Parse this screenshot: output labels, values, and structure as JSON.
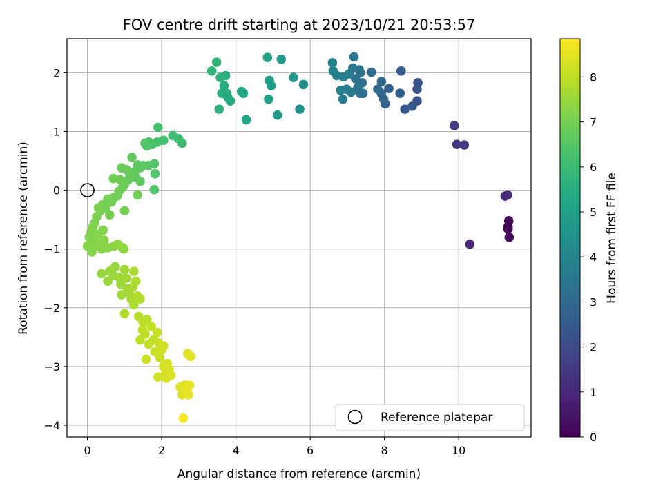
{
  "chart_data": {
    "type": "scatter",
    "title": "FOV centre drift starting at 2023/10/21 20:53:57",
    "xlabel": "Angular distance from reference (arcmin)",
    "ylabel": "Rotation from reference (arcmin)",
    "xlim": [
      -0.55,
      11.95
    ],
    "ylim": [
      -4.2,
      2.58
    ],
    "xticks": [
      0,
      2,
      4,
      6,
      8,
      10
    ],
    "yticks": [
      -4,
      -3,
      -2,
      -1,
      0,
      1,
      2
    ],
    "grid": true,
    "colormap": "viridis",
    "colorbar": {
      "label": "Hours from first FF file",
      "range": [
        0,
        8.85
      ],
      "ticks": [
        0,
        1,
        2,
        3,
        4,
        5,
        6,
        7,
        8
      ]
    },
    "legend": {
      "position": "lower-right",
      "entries": [
        "Reference platepar"
      ]
    },
    "reference_point": {
      "x": 0,
      "y": 0,
      "label": "Reference platepar"
    },
    "points": [
      {
        "x": 11.35,
        "y": -0.52,
        "h": 0.05
      },
      {
        "x": 11.33,
        "y": -0.62,
        "h": 0.1
      },
      {
        "x": 11.33,
        "y": -0.66,
        "h": 0.15
      },
      {
        "x": 11.36,
        "y": -0.8,
        "h": 0.2
      },
      {
        "x": 10.3,
        "y": -0.92,
        "h": 0.9
      },
      {
        "x": 11.25,
        "y": -0.1,
        "h": 1.05
      },
      {
        "x": 11.32,
        "y": -0.08,
        "h": 1.1
      },
      {
        "x": 9.95,
        "y": 0.78,
        "h": 1.4
      },
      {
        "x": 10.15,
        "y": 0.77,
        "h": 1.45
      },
      {
        "x": 9.88,
        "y": 1.1,
        "h": 1.55
      },
      {
        "x": 8.9,
        "y": 1.83,
        "h": 2.2
      },
      {
        "x": 8.88,
        "y": 1.72,
        "h": 2.25
      },
      {
        "x": 8.88,
        "y": 1.52,
        "h": 2.3
      },
      {
        "x": 8.75,
        "y": 1.43,
        "h": 2.4
      },
      {
        "x": 8.55,
        "y": 1.38,
        "h": 2.5
      },
      {
        "x": 8.45,
        "y": 2.03,
        "h": 2.6
      },
      {
        "x": 8.42,
        "y": 1.65,
        "h": 2.65
      },
      {
        "x": 8.12,
        "y": 1.73,
        "h": 2.75
      },
      {
        "x": 8.02,
        "y": 1.47,
        "h": 2.8
      },
      {
        "x": 7.98,
        "y": 1.55,
        "h": 2.85
      },
      {
        "x": 7.92,
        "y": 1.65,
        "h": 2.9
      },
      {
        "x": 7.92,
        "y": 1.85,
        "h": 2.95
      },
      {
        "x": 7.82,
        "y": 1.72,
        "h": 3.0
      },
      {
        "x": 7.65,
        "y": 2.01,
        "h": 3.1
      },
      {
        "x": 7.4,
        "y": 1.83,
        "h": 3.2
      },
      {
        "x": 7.35,
        "y": 1.65,
        "h": 3.25
      },
      {
        "x": 7.32,
        "y": 2.05,
        "h": 3.3
      },
      {
        "x": 7.28,
        "y": 1.75,
        "h": 3.35
      },
      {
        "x": 7.22,
        "y": 1.9,
        "h": 3.4
      },
      {
        "x": 7.18,
        "y": 2.27,
        "h": 3.45
      },
      {
        "x": 7.15,
        "y": 2.08,
        "h": 3.5
      },
      {
        "x": 7.1,
        "y": 1.67,
        "h": 3.55
      },
      {
        "x": 7.05,
        "y": 1.98,
        "h": 3.6
      },
      {
        "x": 6.98,
        "y": 1.72,
        "h": 3.65
      },
      {
        "x": 6.9,
        "y": 1.93,
        "h": 3.7
      },
      {
        "x": 6.88,
        "y": 1.55,
        "h": 3.75
      },
      {
        "x": 6.82,
        "y": 1.7,
        "h": 3.8
      },
      {
        "x": 6.72,
        "y": 1.95,
        "h": 3.85
      },
      {
        "x": 6.62,
        "y": 2.03,
        "h": 3.9
      },
      {
        "x": 6.6,
        "y": 2.17,
        "h": 3.95
      },
      {
        "x": 7.35,
        "y": 2.0,
        "h": 3.4
      },
      {
        "x": 7.42,
        "y": 1.65,
        "h": 3.2
      },
      {
        "x": 5.82,
        "y": 1.8,
        "h": 4.4
      },
      {
        "x": 5.72,
        "y": 1.38,
        "h": 4.5
      },
      {
        "x": 5.55,
        "y": 1.92,
        "h": 4.6
      },
      {
        "x": 5.22,
        "y": 2.23,
        "h": 4.7
      },
      {
        "x": 5.12,
        "y": 1.28,
        "h": 4.75
      },
      {
        "x": 4.95,
        "y": 1.78,
        "h": 4.85
      },
      {
        "x": 4.9,
        "y": 1.87,
        "h": 4.9
      },
      {
        "x": 4.88,
        "y": 1.55,
        "h": 4.95
      },
      {
        "x": 4.85,
        "y": 2.26,
        "h": 5.0
      },
      {
        "x": 4.28,
        "y": 1.2,
        "h": 5.2
      },
      {
        "x": 4.2,
        "y": 1.65,
        "h": 5.25
      },
      {
        "x": 4.15,
        "y": 1.68,
        "h": 5.3
      },
      {
        "x": 3.85,
        "y": 1.52,
        "h": 5.4
      },
      {
        "x": 3.78,
        "y": 1.58,
        "h": 5.45
      },
      {
        "x": 3.72,
        "y": 1.95,
        "h": 5.5
      },
      {
        "x": 3.68,
        "y": 1.78,
        "h": 5.55
      },
      {
        "x": 3.62,
        "y": 1.65,
        "h": 5.6
      },
      {
        "x": 3.58,
        "y": 1.92,
        "h": 5.65
      },
      {
        "x": 3.55,
        "y": 1.38,
        "h": 5.7
      },
      {
        "x": 3.48,
        "y": 2.18,
        "h": 5.75
      },
      {
        "x": 3.35,
        "y": 2.03,
        "h": 5.8
      },
      {
        "x": 3.75,
        "y": 1.65,
        "h": 5.5
      },
      {
        "x": 2.55,
        "y": 0.8,
        "h": 6.0
      },
      {
        "x": 2.45,
        "y": 0.88,
        "h": 6.05
      },
      {
        "x": 2.3,
        "y": 0.93,
        "h": 6.1
      },
      {
        "x": 2.05,
        "y": 0.85,
        "h": 6.15
      },
      {
        "x": 1.9,
        "y": 1.07,
        "h": 6.2
      },
      {
        "x": 1.88,
        "y": 0.82,
        "h": 6.25
      },
      {
        "x": 1.75,
        "y": 0.78,
        "h": 6.3
      },
      {
        "x": 1.65,
        "y": 0.82,
        "h": 6.35
      },
      {
        "x": 1.6,
        "y": 0.75,
        "h": 6.4
      },
      {
        "x": 1.55,
        "y": 0.8,
        "h": 6.45
      },
      {
        "x": 1.8,
        "y": 0.45,
        "h": 6.4
      },
      {
        "x": 1.82,
        "y": 0.28,
        "h": 6.4
      },
      {
        "x": 1.8,
        "y": 0.01,
        "h": 6.4
      },
      {
        "x": 1.65,
        "y": 0.42,
        "h": 6.5
      },
      {
        "x": 1.5,
        "y": 0.42,
        "h": 6.55
      },
      {
        "x": 1.42,
        "y": 0.38,
        "h": 6.6
      },
      {
        "x": 1.35,
        "y": 0.43,
        "h": 6.6
      },
      {
        "x": 1.3,
        "y": 0.22,
        "h": 6.65
      },
      {
        "x": 1.42,
        "y": 0.15,
        "h": 6.65
      },
      {
        "x": 1.2,
        "y": 0.56,
        "h": 6.7
      },
      {
        "x": 1.28,
        "y": 0.32,
        "h": 6.7
      },
      {
        "x": 1.15,
        "y": 0.25,
        "h": 6.75
      },
      {
        "x": 1.1,
        "y": 0.18,
        "h": 6.75
      },
      {
        "x": 1.05,
        "y": 0.35,
        "h": 6.8
      },
      {
        "x": 1.0,
        "y": 0.1,
        "h": 6.8
      },
      {
        "x": 0.95,
        "y": 0.05,
        "h": 6.85
      },
      {
        "x": 0.92,
        "y": 0.38,
        "h": 6.85
      },
      {
        "x": 0.88,
        "y": 0.18,
        "h": 6.9
      },
      {
        "x": 0.7,
        "y": 0.2,
        "h": 6.9
      },
      {
        "x": 0.85,
        "y": -0.02,
        "h": 6.9
      },
      {
        "x": 0.8,
        "y": -0.1,
        "h": 6.95
      },
      {
        "x": 0.72,
        "y": -0.12,
        "h": 6.95
      },
      {
        "x": 0.65,
        "y": -0.2,
        "h": 7.0
      },
      {
        "x": 0.55,
        "y": -0.15,
        "h": 7.0
      },
      {
        "x": 0.5,
        "y": -0.3,
        "h": 7.0
      },
      {
        "x": 1.35,
        "y": -0.08,
        "h": 6.95
      },
      {
        "x": 1.0,
        "y": -0.35,
        "h": 7.0
      },
      {
        "x": 0.6,
        "y": -0.42,
        "h": 7.05
      },
      {
        "x": 0.4,
        "y": -0.25,
        "h": 7.05
      },
      {
        "x": 0.35,
        "y": -0.35,
        "h": 7.05
      },
      {
        "x": 0.3,
        "y": -0.3,
        "h": 7.1
      },
      {
        "x": 0.25,
        "y": -0.45,
        "h": 7.1
      },
      {
        "x": 0.2,
        "y": -0.55,
        "h": 7.1
      },
      {
        "x": 0.15,
        "y": -0.62,
        "h": 7.15
      },
      {
        "x": 0.1,
        "y": -0.72,
        "h": 7.15
      },
      {
        "x": 0.05,
        "y": -0.8,
        "h": 7.15
      },
      {
        "x": 0.08,
        "y": -0.95,
        "h": 7.2
      },
      {
        "x": 0.12,
        "y": -1.05,
        "h": 7.2
      },
      {
        "x": 0.2,
        "y": -0.88,
        "h": 7.2
      },
      {
        "x": 0.28,
        "y": -0.75,
        "h": 7.2
      },
      {
        "x": 0.3,
        "y": -0.95,
        "h": 7.25
      },
      {
        "x": 0.38,
        "y": -1.0,
        "h": 7.25
      },
      {
        "x": 0.45,
        "y": -0.85,
        "h": 7.25
      },
      {
        "x": 0.0,
        "y": -0.95,
        "h": 7.25
      },
      {
        "x": 0.42,
        "y": -0.68,
        "h": 7.2
      },
      {
        "x": 0.55,
        "y": -0.98,
        "h": 7.3
      },
      {
        "x": 0.72,
        "y": -0.95,
        "h": 7.35
      },
      {
        "x": 0.82,
        "y": -0.92,
        "h": 7.35
      },
      {
        "x": 0.95,
        "y": -0.98,
        "h": 7.4
      },
      {
        "x": 0.98,
        "y": -1.0,
        "h": 7.4
      },
      {
        "x": 0.75,
        "y": -1.3,
        "h": 7.45
      },
      {
        "x": 0.7,
        "y": -1.45,
        "h": 7.45
      },
      {
        "x": 0.6,
        "y": -1.38,
        "h": 7.5
      },
      {
        "x": 0.55,
        "y": -1.55,
        "h": 7.5
      },
      {
        "x": 0.38,
        "y": -1.42,
        "h": 7.45
      },
      {
        "x": 0.85,
        "y": -1.48,
        "h": 7.55
      },
      {
        "x": 0.9,
        "y": -1.6,
        "h": 7.55
      },
      {
        "x": 1.0,
        "y": -1.35,
        "h": 7.6
      },
      {
        "x": 1.05,
        "y": -1.5,
        "h": 7.6
      },
      {
        "x": 1.08,
        "y": -1.68,
        "h": 7.65
      },
      {
        "x": 1.12,
        "y": -1.75,
        "h": 7.65
      },
      {
        "x": 1.18,
        "y": -1.85,
        "h": 7.7
      },
      {
        "x": 1.22,
        "y": -1.65,
        "h": 7.7
      },
      {
        "x": 1.25,
        "y": -1.95,
        "h": 7.75
      },
      {
        "x": 1.3,
        "y": -1.55,
        "h": 7.75
      },
      {
        "x": 1.35,
        "y": -1.8,
        "h": 7.8
      },
      {
        "x": 1.42,
        "y": -1.85,
        "h": 7.8
      },
      {
        "x": 1.0,
        "y": -2.1,
        "h": 7.8
      },
      {
        "x": 1.25,
        "y": -1.38,
        "h": 7.7
      },
      {
        "x": 0.92,
        "y": -1.78,
        "h": 7.6
      },
      {
        "x": 1.38,
        "y": -2.15,
        "h": 7.85
      },
      {
        "x": 1.5,
        "y": -2.25,
        "h": 7.9
      },
      {
        "x": 1.6,
        "y": -2.2,
        "h": 7.9
      },
      {
        "x": 1.55,
        "y": -2.45,
        "h": 7.95
      },
      {
        "x": 1.42,
        "y": -2.55,
        "h": 7.95
      },
      {
        "x": 1.48,
        "y": -2.38,
        "h": 8.0
      },
      {
        "x": 1.65,
        "y": -2.62,
        "h": 8.0
      },
      {
        "x": 1.72,
        "y": -2.32,
        "h": 8.05
      },
      {
        "x": 1.78,
        "y": -2.55,
        "h": 8.05
      },
      {
        "x": 1.82,
        "y": -2.75,
        "h": 8.1
      },
      {
        "x": 1.88,
        "y": -2.42,
        "h": 8.1
      },
      {
        "x": 1.92,
        "y": -2.6,
        "h": 8.15
      },
      {
        "x": 1.95,
        "y": -2.85,
        "h": 8.15
      },
      {
        "x": 2.0,
        "y": -2.72,
        "h": 8.2
      },
      {
        "x": 2.05,
        "y": -2.65,
        "h": 8.2
      },
      {
        "x": 1.58,
        "y": -2.88,
        "h": 8.15
      },
      {
        "x": 1.9,
        "y": -3.18,
        "h": 8.25
      },
      {
        "x": 2.05,
        "y": -3.0,
        "h": 8.25
      },
      {
        "x": 2.1,
        "y": -3.12,
        "h": 8.3
      },
      {
        "x": 2.15,
        "y": -2.95,
        "h": 8.3
      },
      {
        "x": 2.2,
        "y": -3.05,
        "h": 8.35
      },
      {
        "x": 2.25,
        "y": -3.15,
        "h": 8.35
      },
      {
        "x": 2.12,
        "y": -3.2,
        "h": 8.35
      },
      {
        "x": 2.5,
        "y": -3.35,
        "h": 8.4
      },
      {
        "x": 2.55,
        "y": -3.48,
        "h": 8.45
      },
      {
        "x": 2.62,
        "y": -3.32,
        "h": 8.45
      },
      {
        "x": 2.68,
        "y": -3.4,
        "h": 8.5
      },
      {
        "x": 2.72,
        "y": -3.48,
        "h": 8.55
      },
      {
        "x": 2.75,
        "y": -3.32,
        "h": 8.55
      },
      {
        "x": 2.7,
        "y": -2.78,
        "h": 8.4
      },
      {
        "x": 2.78,
        "y": -2.83,
        "h": 8.45
      },
      {
        "x": 2.58,
        "y": -3.88,
        "h": 8.8
      }
    ]
  }
}
